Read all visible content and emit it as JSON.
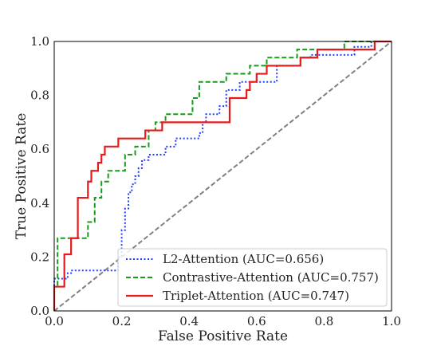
{
  "chart_data": {
    "type": "line",
    "xlabel": "False Positive Rate",
    "ylabel": "True Positive Rate",
    "xlim": [
      0,
      1
    ],
    "ylim": [
      0,
      1
    ],
    "xticks": [
      "0.0",
      "0.2",
      "0.4",
      "0.6",
      "0.8",
      "1.0"
    ],
    "yticks": [
      "0.0",
      "0.2",
      "0.4",
      "0.6",
      "0.8",
      "1.0"
    ],
    "grid": false,
    "legend_position": "lower-right",
    "series": [
      {
        "name": "L2-Attention (AUC=0.656)",
        "color": "#1f3fff",
        "style": "dotted",
        "x": [
          0.0,
          0.0,
          0.04,
          0.04,
          0.05,
          0.05,
          0.19,
          0.19,
          0.2,
          0.2,
          0.21,
          0.21,
          0.22,
          0.22,
          0.23,
          0.23,
          0.24,
          0.24,
          0.25,
          0.25,
          0.26,
          0.26,
          0.28,
          0.28,
          0.33,
          0.33,
          0.36,
          0.36,
          0.43,
          0.43,
          0.44,
          0.44,
          0.45,
          0.45,
          0.49,
          0.49,
          0.51,
          0.51,
          0.55,
          0.55,
          0.66,
          0.66,
          0.73,
          0.73,
          0.76,
          0.76,
          0.8,
          0.8,
          0.89,
          0.89,
          0.94,
          0.94,
          1.0
        ],
        "y": [
          0.0,
          0.12,
          0.12,
          0.14,
          0.14,
          0.15,
          0.15,
          0.2,
          0.2,
          0.3,
          0.3,
          0.38,
          0.38,
          0.44,
          0.44,
          0.47,
          0.47,
          0.5,
          0.5,
          0.53,
          0.53,
          0.56,
          0.56,
          0.58,
          0.58,
          0.61,
          0.61,
          0.64,
          0.64,
          0.66,
          0.66,
          0.7,
          0.7,
          0.73,
          0.73,
          0.76,
          0.76,
          0.82,
          0.82,
          0.85,
          0.85,
          0.91,
          0.91,
          0.94,
          0.94,
          0.95,
          0.95,
          0.95,
          0.95,
          0.98,
          0.98,
          1.0,
          1.0
        ]
      },
      {
        "name": "Contrastive-Attention (AUC=0.757)",
        "color": "#1a9a1a",
        "style": "dashed",
        "x": [
          0.0,
          0.0,
          0.01,
          0.01,
          0.1,
          0.1,
          0.12,
          0.12,
          0.14,
          0.14,
          0.16,
          0.16,
          0.21,
          0.21,
          0.24,
          0.24,
          0.28,
          0.28,
          0.3,
          0.3,
          0.33,
          0.33,
          0.41,
          0.41,
          0.43,
          0.43,
          0.45,
          0.45,
          0.51,
          0.51,
          0.54,
          0.54,
          0.58,
          0.58,
          0.63,
          0.63,
          0.68,
          0.68,
          0.72,
          0.72,
          0.86,
          0.86,
          0.93,
          0.93,
          1.0
        ],
        "y": [
          0.0,
          0.09,
          0.09,
          0.27,
          0.27,
          0.33,
          0.33,
          0.42,
          0.42,
          0.48,
          0.48,
          0.52,
          0.52,
          0.58,
          0.58,
          0.61,
          0.61,
          0.67,
          0.67,
          0.7,
          0.7,
          0.73,
          0.73,
          0.79,
          0.79,
          0.85,
          0.85,
          0.85,
          0.85,
          0.88,
          0.88,
          0.88,
          0.88,
          0.91,
          0.91,
          0.94,
          0.94,
          0.94,
          0.94,
          0.97,
          0.97,
          1.0,
          1.0,
          1.0,
          1.0
        ]
      },
      {
        "name": "Triplet-Attention (AUC=0.747)",
        "color": "#e61a1a",
        "style": "solid",
        "x": [
          0.0,
          0.0,
          0.03,
          0.03,
          0.05,
          0.05,
          0.07,
          0.07,
          0.1,
          0.1,
          0.11,
          0.11,
          0.13,
          0.13,
          0.14,
          0.14,
          0.15,
          0.15,
          0.19,
          0.19,
          0.27,
          0.27,
          0.32,
          0.32,
          0.45,
          0.45,
          0.52,
          0.52,
          0.57,
          0.57,
          0.58,
          0.58,
          0.6,
          0.6,
          0.63,
          0.63,
          0.73,
          0.73,
          0.78,
          0.78,
          0.95,
          0.95,
          1.0
        ],
        "y": [
          0.0,
          0.09,
          0.09,
          0.21,
          0.21,
          0.27,
          0.27,
          0.42,
          0.42,
          0.48,
          0.48,
          0.52,
          0.52,
          0.55,
          0.55,
          0.58,
          0.58,
          0.61,
          0.61,
          0.64,
          0.64,
          0.67,
          0.67,
          0.7,
          0.7,
          0.7,
          0.7,
          0.79,
          0.79,
          0.82,
          0.82,
          0.85,
          0.85,
          0.88,
          0.88,
          0.91,
          0.91,
          0.94,
          0.94,
          0.97,
          0.97,
          1.0,
          1.0
        ]
      }
    ],
    "reference_line": {
      "color": "#808080",
      "style": "dashed",
      "x": [
        0,
        1
      ],
      "y": [
        0,
        1
      ]
    }
  }
}
